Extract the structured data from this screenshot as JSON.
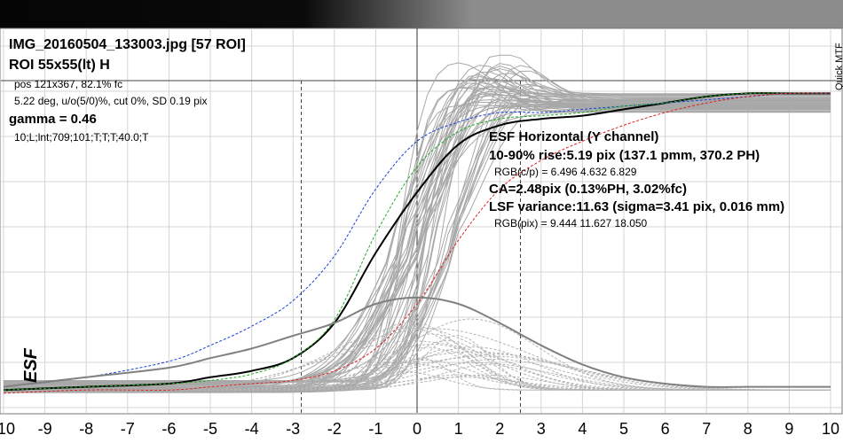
{
  "header": {
    "title": "IMG_20160504_133003.jpg [57 ROI]",
    "roi": "ROI 55x55(lt) H",
    "pos": "pos 121x367, 82.1% fc",
    "angle": "5.22 deg, u/o(5/0)%, cut 0%, SD 0.19 pix",
    "gamma": "gamma = 0.46",
    "settings": "10;L;lnt;709;101;T;T;T;40.0;T"
  },
  "results": {
    "heading": "ESF Horizontal (Y channel)",
    "rise": "10-90% rise:5.19 pix (137.1 pmm, 370.2 PH)",
    "rgb_cp": "RGB(c/p) = 6.496 4.632 6.829",
    "ca": "CA=2.48pix (0.13%PH, 3.02%fc)",
    "lsf_variance": "LSF variance:11.63 (sigma=3.41 pix, 0.016 mm)",
    "rgb_pix": "RGB(pix) = 9.444 11.627 18.050"
  },
  "side_label": "Quick MTF",
  "colors": {
    "red": "#dd2222",
    "green": "#22aa22",
    "blue": "#1a3fd6",
    "y_channel": "#000000",
    "other_rois": "#a0a0a0",
    "lsf": "#808080"
  },
  "chart_data": {
    "type": "line",
    "ylabel": "ESF",
    "xlim": [
      -10,
      10
    ],
    "ylim": [
      0,
      1
    ],
    "x_ticks": [
      -10,
      -9,
      -8,
      -7,
      -6,
      -5,
      -4,
      -3,
      -2,
      -1,
      0,
      1,
      2,
      3,
      4,
      5,
      6,
      7,
      8,
      9,
      10
    ],
    "grid": true,
    "markers_x": [
      -2.8,
      2.5
    ],
    "series": [
      {
        "color": "#000000",
        "points": [
          [
            -10,
            0.03
          ],
          [
            -8,
            0.04
          ],
          [
            -6,
            0.05
          ],
          [
            -5,
            0.07
          ],
          [
            -4,
            0.09
          ],
          [
            -3,
            0.13
          ],
          [
            -2,
            0.24
          ],
          [
            -1,
            0.46
          ],
          [
            0,
            0.65
          ],
          [
            1,
            0.8
          ],
          [
            2,
            0.86
          ],
          [
            3,
            0.88
          ],
          [
            4,
            0.89
          ],
          [
            5,
            0.91
          ],
          [
            6,
            0.93
          ],
          [
            7,
            0.95
          ],
          [
            8,
            0.96
          ],
          [
            9,
            0.96
          ],
          [
            10,
            0.96
          ]
        ]
      },
      {
        "color": "#1a3fd6",
        "points": [
          [
            -10,
            0.04
          ],
          [
            -8,
            0.07
          ],
          [
            -6,
            0.12
          ],
          [
            -5,
            0.17
          ],
          [
            -4,
            0.23
          ],
          [
            -3,
            0.31
          ],
          [
            -2,
            0.45
          ],
          [
            -1,
            0.66
          ],
          [
            0,
            0.81
          ],
          [
            1,
            0.87
          ],
          [
            2,
            0.9
          ],
          [
            3,
            0.9
          ],
          [
            4,
            0.91
          ],
          [
            5,
            0.92
          ],
          [
            6,
            0.93
          ],
          [
            7,
            0.94
          ],
          [
            8,
            0.95
          ],
          [
            9,
            0.96
          ],
          [
            10,
            0.96
          ]
        ]
      },
      {
        "color": "#22aa22",
        "points": [
          [
            -10,
            0.03
          ],
          [
            -8,
            0.04
          ],
          [
            -6,
            0.05
          ],
          [
            -5,
            0.06
          ],
          [
            -4,
            0.08
          ],
          [
            -3,
            0.13
          ],
          [
            -2,
            0.25
          ],
          [
            -1,
            0.52
          ],
          [
            0,
            0.73
          ],
          [
            1,
            0.84
          ],
          [
            2,
            0.88
          ],
          [
            3,
            0.89
          ],
          [
            4,
            0.9
          ],
          [
            5,
            0.92
          ],
          [
            6,
            0.93
          ],
          [
            7,
            0.95
          ],
          [
            8,
            0.96
          ],
          [
            9,
            0.96
          ],
          [
            10,
            0.96
          ]
        ]
      },
      {
        "color": "#dd2222",
        "points": [
          [
            -10,
            0.02
          ],
          [
            -8,
            0.03
          ],
          [
            -6,
            0.03
          ],
          [
            -5,
            0.04
          ],
          [
            -4,
            0.05
          ],
          [
            -3,
            0.06
          ],
          [
            -2,
            0.09
          ],
          [
            -1,
            0.16
          ],
          [
            0,
            0.3
          ],
          [
            1,
            0.5
          ],
          [
            2,
            0.66
          ],
          [
            3,
            0.75
          ],
          [
            4,
            0.81
          ],
          [
            5,
            0.86
          ],
          [
            6,
            0.9
          ],
          [
            7,
            0.93
          ],
          [
            8,
            0.95
          ],
          [
            9,
            0.96
          ],
          [
            10,
            0.96
          ]
        ]
      },
      {
        "color": "#808080",
        "points": [
          [
            -10,
            0.04
          ],
          [
            -8,
            0.07
          ],
          [
            -6,
            0.1
          ],
          [
            -5,
            0.13
          ],
          [
            -4,
            0.16
          ],
          [
            -3,
            0.2
          ],
          [
            -2,
            0.24
          ],
          [
            -1,
            0.3
          ],
          [
            0,
            0.32
          ],
          [
            1,
            0.3
          ],
          [
            2,
            0.24
          ],
          [
            3,
            0.17
          ],
          [
            4,
            0.11
          ],
          [
            5,
            0.07
          ],
          [
            6,
            0.05
          ],
          [
            7,
            0.04
          ],
          [
            8,
            0.04
          ],
          [
            9,
            0.04
          ],
          [
            10,
            0.04
          ]
        ]
      }
    ]
  }
}
